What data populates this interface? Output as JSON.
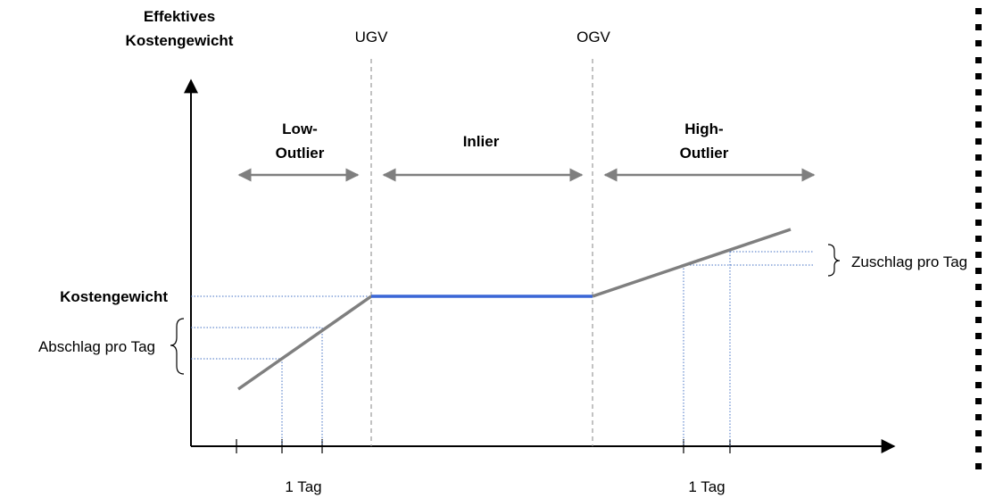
{
  "y_axis_label": {
    "line1": "Effektives",
    "line2": "Kostengewicht"
  },
  "boundaries": {
    "lower": "UGV",
    "upper": "OGV"
  },
  "regions": {
    "low": {
      "line1": "Low-",
      "line2": "Outlier"
    },
    "in": {
      "line1": "Inlier"
    },
    "high": {
      "line1": "High-",
      "line2": "Outlier"
    }
  },
  "labels": {
    "cost_weight": "Kostengewicht",
    "discount": "Abschlag pro Tag",
    "surcharge": "Zuschlag pro Tag",
    "day_left": "1 Tag",
    "day_right": "1 Tag"
  },
  "colors": {
    "axis": "#000000",
    "line": "#7f7f7f",
    "inlier_line": "#3a66d6",
    "guide": "#4472c4",
    "boundary": "#999999"
  }
}
